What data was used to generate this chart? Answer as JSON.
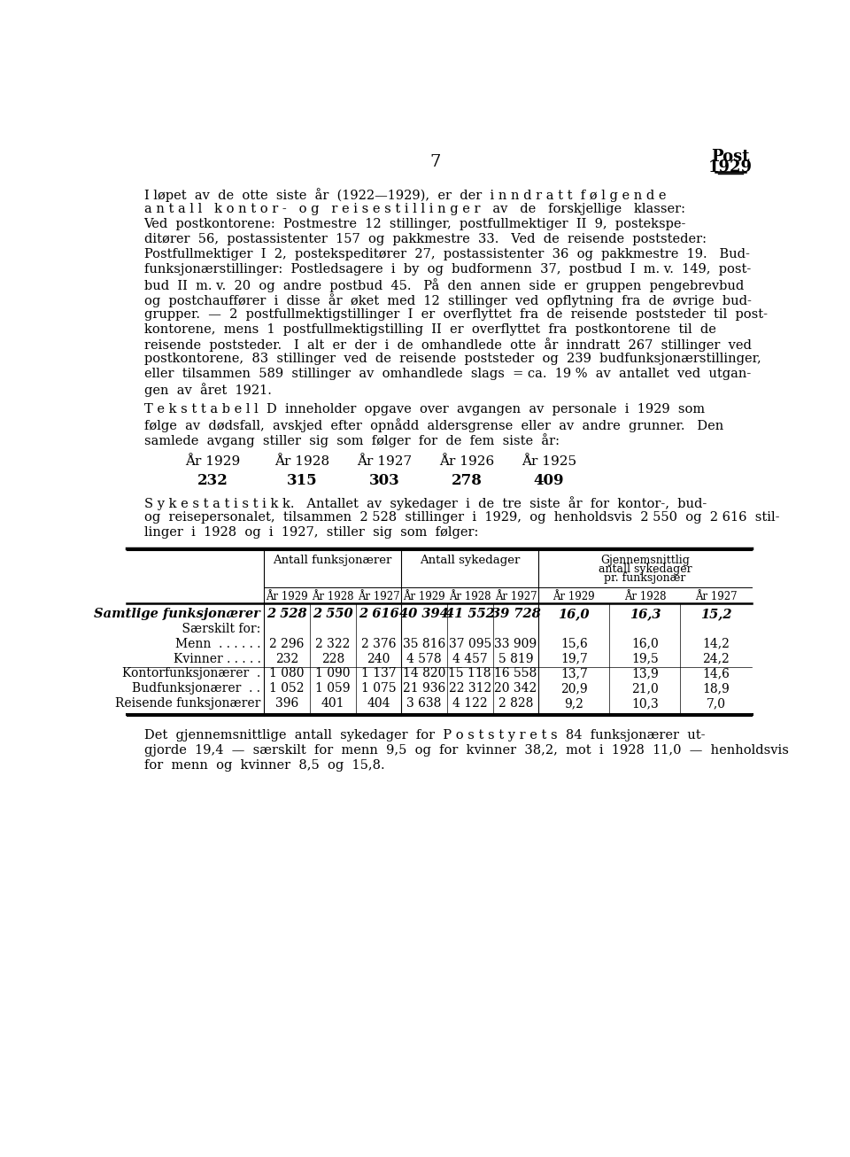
{
  "page_number": "7",
  "background_color": "#ffffff",
  "text_color": "#000000",
  "para1_lines": [
    "I løpet  av  de  otte  siste  år  (1922—1929),  er  der  i n n d r a t t  f ø l g e n d e",
    "a n t a l l   k o n t o r -   o g   r e i s e s t i l l i n g e r   av   de   forskjellige   klasser:",
    "Ved  postkontorene:  Postmestre  12  stillinger,  postfullmektiger  II  9,  postekspe-",
    "ditører  56,  postassistenter  157  og  pakkmestre  33.   Ved  de  reisende  poststeder:",
    "Postfullmektiger  I  2,  postekspeditører  27,  postassistenter  36  og  pakkmestre  19.   Bud-",
    "funksjonærstillinger:  Postledsagere  i  by  og  budformenn  37,  postbud  I  m. v.  149,  post-",
    "bud  II  m. v.  20  og  andre  postbud  45.   På  den  annen  side  er  gruppen  pengebrevbud",
    "og  postchauffører  i  disse  år  øket  med  12  stillinger  ved  opflytning  fra  de  øvrige  bud-",
    "grupper.  —  2  postfullmektigstillinger  I  er  overflyttet  fra  de  reisende  poststeder  til  post-",
    "kontorene,  mens  1  postfullmektigstilling  II  er  overflyttet  fra  postkontorene  til  de",
    "reisende  poststeder.   I  alt  er  der  i  de  omhandlede  otte  år  inndratt  267  stillinger  ved",
    "postkontorene,  83  stillinger  ved  de  reisende  poststeder  og  239  budfunksjonærstillinger,",
    "eller  tilsammen  589  stillinger  av  omhandlede  slags  = ca.  19 %  av  antallet  ved  utgan-",
    "gen  av  året  1921."
  ],
  "para2_lines": [
    "T e k s t t a b e l l  D  inneholder  opgave  over  avgangen  av  personale  i  1929  som",
    "følge  av  dødsfall,  avskjed  efter  opnådd  aldersgrense  eller  av  andre  grunner.   Den",
    "samlede  avgang  stiller  sig  som  følger  for  de  fem  siste  år:"
  ],
  "years_header": [
    "År 1929",
    "År 1928",
    "År 1927",
    "År 1926",
    "År 1925"
  ],
  "years_values": [
    "232",
    "315",
    "303",
    "278",
    "409"
  ],
  "para3_lines": [
    "S y k e s t a t i s t i k k.   Antallet  av  sykedager  i  de  tre  siste  år  for  kontor-,  bud-",
    "og  reisepersonalet,  tilsammen  2 528  stillinger  i  1929,  og  henholdsvis  2 550  og  2 616  stil-",
    "linger  i  1928  og  i  1927,  stiller  sig  som  følger:"
  ],
  "table_rows": [
    {
      "label": "Samtlige funksjonærer",
      "italic": true,
      "values": [
        "2 528",
        "2 550",
        "2 616",
        "40 394",
        "41 552",
        "39 728",
        "16,0",
        "16,3",
        "15,2"
      ]
    },
    {
      "label": "    Særskilt for:",
      "italic": false,
      "values": [
        "",
        "",
        "",
        "",
        "",
        "",
        "",
        "",
        ""
      ]
    },
    {
      "label": "Menn  . . . . . .",
      "italic": false,
      "values": [
        "2 296",
        "2 322",
        "2 376",
        "35 816",
        "37 095",
        "33 909",
        "15,6",
        "16,0",
        "14,2"
      ]
    },
    {
      "label": "Kvinner . . . . .",
      "italic": false,
      "values": [
        "232",
        "228",
        "240",
        "4 578",
        "4 457",
        "5 819",
        "19,7",
        "19,5",
        "24,2"
      ]
    },
    {
      "label": "Kontorfunksjonærer  .",
      "italic": false,
      "values": [
        "1 080",
        "1 090",
        "1 137",
        "14 820",
        "15 118",
        "16 558",
        "13,7",
        "13,9",
        "14,6"
      ]
    },
    {
      "label": "Budfunksjonærer  . .",
      "italic": false,
      "values": [
        "1 052",
        "1 059",
        "1 075",
        "21 936",
        "22 312",
        "20 342",
        "20,9",
        "21,0",
        "18,9"
      ]
    },
    {
      "label": "Reisende funksjonærer",
      "italic": false,
      "values": [
        "396",
        "401",
        "404",
        "3 638",
        "4 122",
        "2 828",
        "9,2",
        "10,3",
        "7,0"
      ]
    }
  ],
  "para4_lines": [
    "Det  gjennemsnittlige  antall  sykedager  for  P o s t s t y r e t s  84  funksjonærer  ut-",
    "gjorde  19,4  —  særskilt  for  menn  9,5  og  for  kvinner  38,2,  mot  i  1928  11,0  —  henholdsvis",
    "for  menn  og  kvinner  8,5  og  15,8."
  ]
}
